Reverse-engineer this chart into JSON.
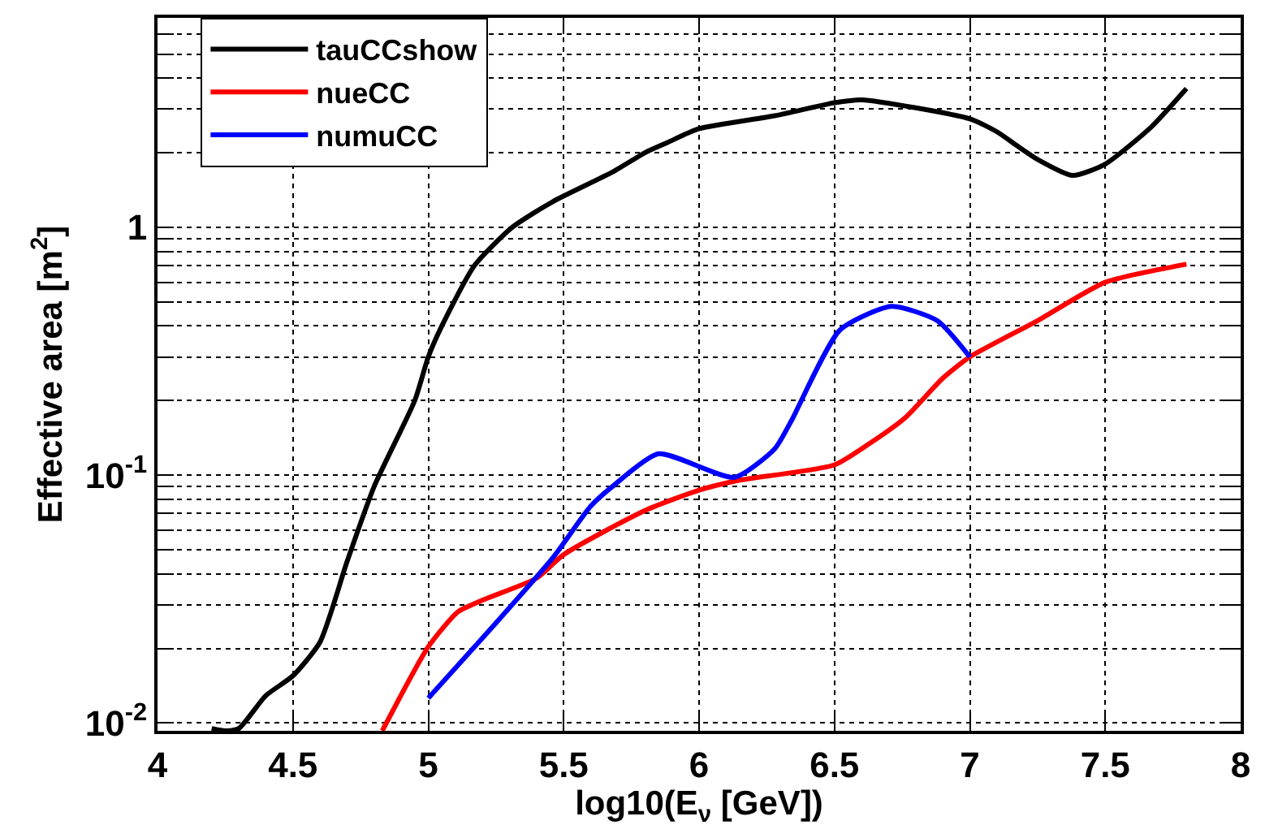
{
  "chart_data": {
    "type": "line",
    "xlabel": "log10(E$_{ν}$ [GeV])",
    "ylabel": "Effective area [m$^{2}$]",
    "log": "y",
    "grid": true,
    "legend": "top left",
    "line_style": "solid",
    "marker": "none",
    "xlim": [
      4,
      8
    ],
    "xticks": [
      4,
      4.5,
      5,
      5.5,
      6,
      6.5,
      7,
      7.5,
      8
    ],
    "ylim": [
      0.0093,
      7
    ],
    "yticks": [
      {
        "value": 0.01,
        "label": "10$^{-2}$"
      },
      {
        "value": 0.02,
        "label": null
      },
      {
        "value": 0.03,
        "label": null
      },
      {
        "value": 0.04,
        "label": null
      },
      {
        "value": 0.05,
        "label": null
      },
      {
        "value": 0.06,
        "label": null
      },
      {
        "value": 0.07,
        "label": null
      },
      {
        "value": 0.08,
        "label": null
      },
      {
        "value": 0.09,
        "label": null
      },
      {
        "value": 0.1,
        "label": "10$^{-1}$"
      },
      {
        "value": 0.2,
        "label": null
      },
      {
        "value": 0.3,
        "label": null
      },
      {
        "value": 0.4,
        "label": null
      },
      {
        "value": 0.5,
        "label": null
      },
      {
        "value": 0.6,
        "label": null
      },
      {
        "value": 0.7,
        "label": null
      },
      {
        "value": 0.8,
        "label": null
      },
      {
        "value": 0.9,
        "label": null
      },
      {
        "value": 1,
        "label": "1"
      },
      {
        "value": 2,
        "label": null
      },
      {
        "value": 3,
        "label": null
      },
      {
        "value": 4,
        "label": null
      },
      {
        "value": 5,
        "label": null
      },
      {
        "value": 6,
        "label": null
      },
      {
        "value": 7,
        "label": null
      }
    ],
    "series": [
      {
        "name": "tauCCshow",
        "color": "#000000",
        "x": [
          4.2,
          4.25,
          4.3,
          4.4,
          4.5,
          4.6,
          4.7,
          4.8,
          4.95,
          5.0,
          5.05,
          5.17,
          5.31,
          5.46,
          5.68,
          5.8,
          5.88,
          6.0,
          6.28,
          6.5,
          6.6,
          7.0,
          7.1,
          7.17,
          7.25,
          7.38,
          7.5,
          7.67,
          7.8
        ],
        "values": [
          0.0095,
          0.0093,
          0.0095,
          0.0129,
          0.0155,
          0.0212,
          0.0448,
          0.09,
          0.2,
          0.3,
          0.4,
          0.7,
          1.0,
          1.27,
          1.67,
          2.0,
          2.19,
          2.5,
          2.82,
          3.18,
          3.27,
          2.74,
          2.43,
          2.15,
          1.88,
          1.62,
          1.8,
          2.54,
          3.63
        ]
      },
      {
        "name": "nueCC",
        "color": "#ff0000",
        "x": [
          4.83,
          5.0,
          5.11,
          5.21,
          5.4,
          5.5,
          5.8,
          6.0,
          6.14,
          6.5,
          6.62,
          6.76,
          6.9,
          7.0,
          7.25,
          7.5,
          7.8
        ],
        "values": [
          0.0093,
          0.0203,
          0.0281,
          0.0316,
          0.0384,
          0.0478,
          0.072,
          0.087,
          0.095,
          0.11,
          0.132,
          0.17,
          0.246,
          0.3,
          0.42,
          0.6,
          0.71
        ]
      },
      {
        "name": "numuCC",
        "color": "#0000ff",
        "x": [
          5.0,
          5.2,
          5.46,
          5.6,
          5.68,
          5.85,
          6.13,
          6.28,
          6.34,
          6.52,
          6.71,
          6.88,
          7.0
        ],
        "values": [
          0.0126,
          0.022,
          0.0464,
          0.075,
          0.09,
          0.122,
          0.098,
          0.128,
          0.165,
          0.385,
          0.48,
          0.42,
          0.3
        ]
      }
    ]
  }
}
